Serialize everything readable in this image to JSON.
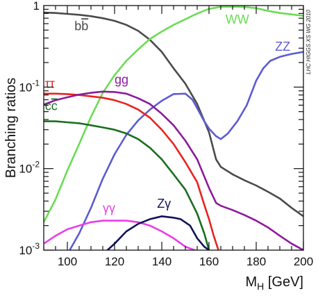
{
  "chart_data": {
    "type": "line",
    "xlabel": "M_H [GeV]",
    "xlabel_main": "M",
    "xlabel_sub": "H",
    "xlabel_unit": " [GeV]",
    "ylabel": "Branching ratios",
    "xlim": [
      90,
      200
    ],
    "ylim": [
      0.001,
      1
    ],
    "yscale": "log",
    "grid": false,
    "watermark": "LHC HIGGS XS WG 2010",
    "x_ticks": [
      100,
      120,
      140,
      160,
      180,
      200
    ],
    "y_ticks": [
      {
        "value": 0.001,
        "base": "10",
        "exp": "-3"
      },
      {
        "value": 0.01,
        "base": "10",
        "exp": "-2"
      },
      {
        "value": 0.1,
        "base": "10",
        "exp": "-1"
      },
      {
        "value": 1,
        "base": "1",
        "exp": ""
      }
    ],
    "series": [
      {
        "name": "bb̄",
        "label_main": "b",
        "label_over": "b",
        "color": "#4a4a4a",
        "label_pos": [
          103,
          0.5
        ],
        "points": [
          [
            90,
            0.82
          ],
          [
            95,
            0.81
          ],
          [
            100,
            0.79
          ],
          [
            105,
            0.77
          ],
          [
            110,
            0.74
          ],
          [
            115,
            0.7
          ],
          [
            120,
            0.65
          ],
          [
            125,
            0.58
          ],
          [
            130,
            0.49
          ],
          [
            135,
            0.38
          ],
          [
            140,
            0.27
          ],
          [
            145,
            0.17
          ],
          [
            150,
            0.11
          ],
          [
            155,
            0.062
          ],
          [
            160,
            0.028
          ],
          [
            163,
            0.013
          ],
          [
            165,
            0.0105
          ],
          [
            170,
            0.0085
          ],
          [
            175,
            0.0072
          ],
          [
            180,
            0.0062
          ],
          [
            185,
            0.0052
          ],
          [
            190,
            0.0043
          ],
          [
            195,
            0.0033
          ],
          [
            200,
            0.0026
          ]
        ]
      },
      {
        "name": "WW",
        "label_main": "WW",
        "color": "#6bdc53",
        "label_pos": [
          167,
          0.6
        ],
        "points": [
          [
            90,
            0.0022
          ],
          [
            95,
            0.0042
          ],
          [
            100,
            0.0095
          ],
          [
            105,
            0.02
          ],
          [
            110,
            0.043
          ],
          [
            115,
            0.085
          ],
          [
            120,
            0.14
          ],
          [
            125,
            0.21
          ],
          [
            130,
            0.29
          ],
          [
            135,
            0.39
          ],
          [
            140,
            0.48
          ],
          [
            145,
            0.58
          ],
          [
            150,
            0.68
          ],
          [
            155,
            0.8
          ],
          [
            160,
            0.91
          ],
          [
            165,
            0.965
          ],
          [
            170,
            0.97
          ],
          [
            175,
            0.96
          ],
          [
            180,
            0.93
          ],
          [
            185,
            0.86
          ],
          [
            190,
            0.81
          ],
          [
            195,
            0.78
          ],
          [
            200,
            0.75
          ]
        ]
      },
      {
        "name": "ZZ",
        "label_main": "ZZ",
        "color": "#5b5bd3",
        "label_pos": [
          188,
          0.28
        ],
        "points": [
          [
            101,
            0.001
          ],
          [
            105,
            0.0016
          ],
          [
            110,
            0.0033
          ],
          [
            115,
            0.0075
          ],
          [
            120,
            0.015
          ],
          [
            125,
            0.026
          ],
          [
            130,
            0.039
          ],
          [
            135,
            0.053
          ],
          [
            140,
            0.068
          ],
          [
            145,
            0.082
          ],
          [
            150,
            0.083
          ],
          [
            153,
            0.07
          ],
          [
            155,
            0.055
          ],
          [
            158,
            0.038
          ],
          [
            160,
            0.031
          ],
          [
            163,
            0.025
          ],
          [
            165,
            0.023
          ],
          [
            168,
            0.027
          ],
          [
            172,
            0.038
          ],
          [
            176,
            0.06
          ],
          [
            180,
            0.12
          ],
          [
            183,
            0.17
          ],
          [
            186,
            0.21
          ],
          [
            190,
            0.235
          ],
          [
            195,
            0.255
          ],
          [
            200,
            0.27
          ]
        ]
      },
      {
        "name": "ττ",
        "label_main": "ττ",
        "color": "#e8231f",
        "label_pos": [
          90.5,
          0.098
        ],
        "points": [
          [
            90,
            0.083
          ],
          [
            95,
            0.083
          ],
          [
            100,
            0.082
          ],
          [
            105,
            0.08
          ],
          [
            110,
            0.077
          ],
          [
            115,
            0.074
          ],
          [
            120,
            0.069
          ],
          [
            125,
            0.062
          ],
          [
            130,
            0.053
          ],
          [
            135,
            0.042
          ],
          [
            140,
            0.03
          ],
          [
            145,
            0.02
          ],
          [
            150,
            0.012
          ],
          [
            155,
            0.0068
          ],
          [
            158,
            0.0036
          ],
          [
            160,
            0.0024
          ],
          [
            162,
            0.0015
          ],
          [
            164,
            0.001
          ]
        ]
      },
      {
        "name": "gg",
        "label_main": "gg",
        "color": "#8c1a9c",
        "label_pos": [
          120,
          0.11
        ],
        "points": [
          [
            90,
            0.061
          ],
          [
            95,
            0.069
          ],
          [
            100,
            0.075
          ],
          [
            105,
            0.081
          ],
          [
            110,
            0.085
          ],
          [
            115,
            0.088
          ],
          [
            120,
            0.087
          ],
          [
            125,
            0.083
          ],
          [
            130,
            0.073
          ],
          [
            135,
            0.062
          ],
          [
            140,
            0.047
          ],
          [
            145,
            0.034
          ],
          [
            150,
            0.022
          ],
          [
            155,
            0.013
          ],
          [
            160,
            0.0058
          ],
          [
            163,
            0.0038
          ],
          [
            165,
            0.0035
          ],
          [
            170,
            0.0031
          ],
          [
            175,
            0.0027
          ],
          [
            180,
            0.0023
          ],
          [
            185,
            0.0019
          ],
          [
            190,
            0.0015
          ],
          [
            195,
            0.0012
          ],
          [
            200,
            0.001
          ]
        ]
      },
      {
        "name": "cc̄",
        "label_main": "c",
        "label_over": "c",
        "color": "#1a6e1f",
        "label_pos": [
          90.5,
          0.052
        ],
        "points": [
          [
            90,
            0.038
          ],
          [
            95,
            0.038
          ],
          [
            100,
            0.037
          ],
          [
            105,
            0.036
          ],
          [
            110,
            0.034
          ],
          [
            115,
            0.032
          ],
          [
            120,
            0.03
          ],
          [
            125,
            0.027
          ],
          [
            130,
            0.023
          ],
          [
            135,
            0.018
          ],
          [
            140,
            0.013
          ],
          [
            145,
            0.0085
          ],
          [
            150,
            0.0055
          ],
          [
            155,
            0.0028
          ],
          [
            158,
            0.0016
          ],
          [
            160,
            0.001
          ]
        ]
      },
      {
        "name": "γγ",
        "label_main": "γγ",
        "color": "#e83ee8",
        "label_pos": [
          115,
          0.0029
        ],
        "points": [
          [
            90,
            0.0012
          ],
          [
            95,
            0.0015
          ],
          [
            100,
            0.0018
          ],
          [
            105,
            0.002
          ],
          [
            110,
            0.0022
          ],
          [
            115,
            0.0023
          ],
          [
            120,
            0.0023
          ],
          [
            125,
            0.0023
          ],
          [
            130,
            0.0022
          ],
          [
            135,
            0.002
          ],
          [
            140,
            0.0017
          ],
          [
            145,
            0.0014
          ],
          [
            150,
            0.0011
          ],
          [
            154,
            0.001
          ]
        ]
      },
      {
        "name": "Zγ",
        "label_main": "Zγ",
        "color": "#0f1359",
        "label_pos": [
          138,
          0.0033
        ],
        "points": [
          [
            117,
            0.001
          ],
          [
            120,
            0.0012
          ],
          [
            125,
            0.0017
          ],
          [
            130,
            0.0021
          ],
          [
            135,
            0.0024
          ],
          [
            140,
            0.0026
          ],
          [
            145,
            0.0025
          ],
          [
            148,
            0.0024
          ],
          [
            152,
            0.002
          ],
          [
            155,
            0.0014
          ],
          [
            158,
            0.0011
          ],
          [
            160,
            0.001
          ]
        ]
      }
    ]
  }
}
